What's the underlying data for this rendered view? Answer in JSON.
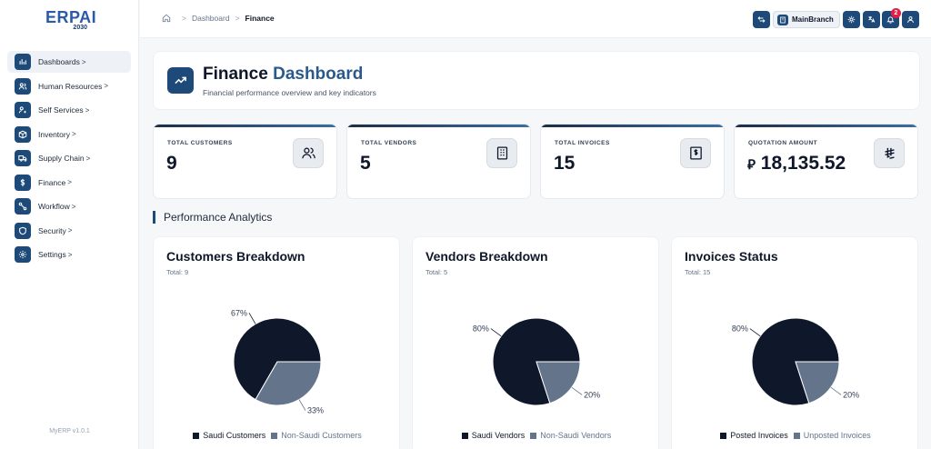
{
  "app": {
    "logo_text": "ERPAI",
    "logo_sub": "2030",
    "version": "MyERP v1.0.1"
  },
  "sidebar": {
    "items": [
      {
        "label": "Dashboards",
        "icon": "bar-chart-icon",
        "active": true
      },
      {
        "label": "Human Resources",
        "icon": "users-icon",
        "active": false
      },
      {
        "label": "Self Services",
        "icon": "user-cog-icon",
        "active": false
      },
      {
        "label": "Inventory",
        "icon": "box-icon",
        "active": false
      },
      {
        "label": "Supply Chain",
        "icon": "truck-icon",
        "active": false
      },
      {
        "label": "Finance",
        "icon": "dollar-icon",
        "active": false
      },
      {
        "label": "Workflow",
        "icon": "workflow-icon",
        "active": false
      },
      {
        "label": "Security",
        "icon": "shield-icon",
        "active": false
      },
      {
        "label": "Settings",
        "icon": "gear-icon",
        "active": false
      }
    ],
    "chevron": ">"
  },
  "topbar": {
    "breadcrumb": [
      "Dashboard",
      "Finance"
    ],
    "branch_label": "MainBranch",
    "notification_count": "2"
  },
  "header": {
    "title_part1": "Finance",
    "title_part2": "Dashboard",
    "subtitle": "Financial performance overview and key indicators"
  },
  "stats": [
    {
      "label": "TOTAL CUSTOMERS",
      "value": "9",
      "icon": "users-icon"
    },
    {
      "label": "TOTAL VENDORS",
      "value": "5",
      "icon": "building-icon"
    },
    {
      "label": "TOTAL INVOICES",
      "value": "15",
      "icon": "invoice-icon"
    },
    {
      "label": "QUOTATION AMOUNT",
      "value": "18,135.52",
      "currency_symbol": "⃁",
      "icon": "riyal-icon"
    }
  ],
  "section_title": "Performance Analytics",
  "colors": {
    "primary": "#1e4a7a",
    "dark_slice": "#0f172a",
    "light_slice": "#64748b"
  },
  "chart_data": [
    {
      "type": "pie",
      "title": "Customers Breakdown",
      "subtitle": "Total: 9",
      "labels": [
        "Saudi Customers",
        "Non-Saudi Customers"
      ],
      "values": [
        6,
        3
      ],
      "percent_labels": [
        "67%",
        "33%"
      ],
      "colors": [
        "#0f172a",
        "#64748b"
      ],
      "legend": "bottom"
    },
    {
      "type": "pie",
      "title": "Vendors Breakdown",
      "subtitle": "Total: 5",
      "labels": [
        "Saudi Vendors",
        "Non-Saudi Vendors"
      ],
      "values": [
        4,
        1
      ],
      "percent_labels": [
        "80%",
        "20%"
      ],
      "colors": [
        "#0f172a",
        "#64748b"
      ],
      "legend": "bottom"
    },
    {
      "type": "pie",
      "title": "Invoices Status",
      "subtitle": "Total: 15",
      "labels": [
        "Posted Invoices",
        "Unposted Invoices"
      ],
      "values": [
        12,
        3
      ],
      "percent_labels": [
        "80%",
        "20%"
      ],
      "colors": [
        "#0f172a",
        "#64748b"
      ],
      "legend": "bottom"
    }
  ]
}
